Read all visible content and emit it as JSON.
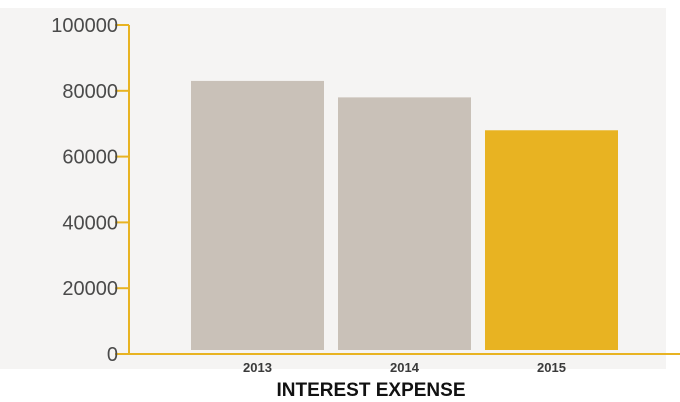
{
  "chart_data": {
    "type": "bar",
    "title": "INTEREST EXPENSE",
    "categories": [
      "2013",
      "2014",
      "2015"
    ],
    "values": [
      83000,
      78000,
      68000
    ],
    "ylim": [
      0,
      100000
    ],
    "yticks": [
      "0",
      "20000",
      "40000",
      "60000",
      "80000",
      "100000"
    ],
    "bar_colors": [
      "#c9c1b8",
      "#c9c1b8",
      "#e8b322"
    ],
    "axis_color": "#e8b322",
    "plot_background": "#f5f4f3",
    "grid": false,
    "legend": "none"
  }
}
